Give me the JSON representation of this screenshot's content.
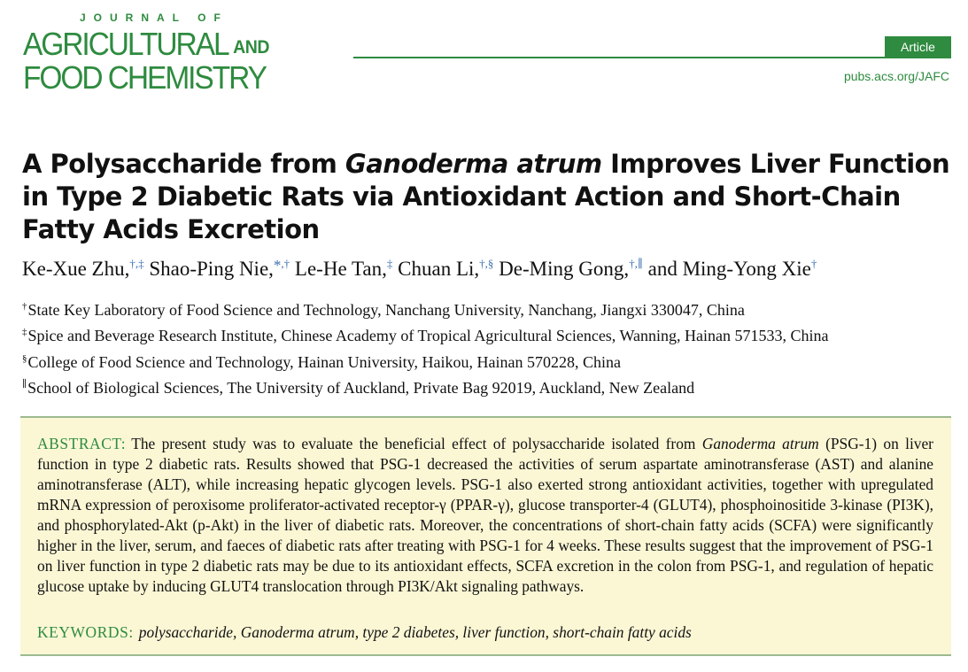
{
  "journal": {
    "small_caps_line": "JOURNAL OF",
    "line1": "AGRICULTURAL",
    "and": "AND",
    "line2": "FOOD CHEMISTRY",
    "article_type": "Article",
    "url": "pubs.acs.org/JAFC"
  },
  "colors": {
    "brand_green": "#2e8b3f",
    "abstract_background": "#fbf7d5",
    "footnote_blue": "#3a6fb0"
  },
  "title": {
    "part1": "A Polysaccharide from ",
    "italic": "Ganoderma atrum",
    "part2": " Improves Liver Function in Type 2 Diabetic Rats via Antioxidant Action and Short-Chain Fatty Acids Excretion"
  },
  "authors": [
    {
      "name": "Ke-Xue Zhu,",
      "marks": "†,‡"
    },
    {
      "name": "Shao-Ping Nie,",
      "star": "*",
      "marks": ",†"
    },
    {
      "name": "Le-He Tan,",
      "marks": "‡"
    },
    {
      "name": "Chuan Li,",
      "marks": "†,§"
    },
    {
      "name": "De-Ming Gong,",
      "marks": "†,∥"
    },
    {
      "prefix": "and",
      "name": "Ming-Yong Xie",
      "marks": "†"
    }
  ],
  "affiliations": [
    {
      "mark": "†",
      "text": "State Key Laboratory of Food Science and Technology, Nanchang University, Nanchang, Jiangxi 330047, China"
    },
    {
      "mark": "‡",
      "text": "Spice and Beverage Research Institute, Chinese Academy of Tropical Agricultural Sciences, Wanning, Hainan 571533, China"
    },
    {
      "mark": "§",
      "text": "College of Food Science and Technology, Hainan University, Haikou, Hainan 570228, China"
    },
    {
      "mark": "∥",
      "text": "School of Biological Sciences, The University of Auckland, Private Bag 92019, Auckland, New Zealand"
    }
  ],
  "abstract": {
    "label": "ABSTRACT:",
    "text1": "The present study was to evaluate the beneficial effect of polysaccharide isolated from ",
    "italic": "Ganoderma atrum",
    "text2": " (PSG-1) on liver function in type 2 diabetic rats. Results showed that PSG-1 decreased the activities of serum aspartate aminotransferase (AST) and alanine aminotransferase (ALT), while increasing hepatic glycogen levels. PSG-1 also exerted strong antioxidant activities, together with upregulated mRNA expression of peroxisome proliferator-activated receptor-γ (PPAR-γ), glucose transporter-4 (GLUT4), phosphoinositide 3-kinase (PI3K), and phosphorylated-Akt (p-Akt) in the liver of diabetic rats. Moreover, the concentrations of short-chain fatty acids (SCFA) were significantly higher in the liver, serum, and faeces of diabetic rats after treating with PSG-1 for 4 weeks. These results suggest that the improvement of PSG-1 on liver function in type 2 diabetic rats may be due to its antioxidant effects, SCFA excretion in the colon from PSG-1, and regulation of hepatic glucose uptake by inducing GLUT4 translocation through PI3K/Akt signaling pathways."
  },
  "keywords": {
    "label": "KEYWORDS:",
    "list": "polysaccharide, Ganoderma atrum, type 2 diabetes, liver function, short-chain fatty acids"
  }
}
